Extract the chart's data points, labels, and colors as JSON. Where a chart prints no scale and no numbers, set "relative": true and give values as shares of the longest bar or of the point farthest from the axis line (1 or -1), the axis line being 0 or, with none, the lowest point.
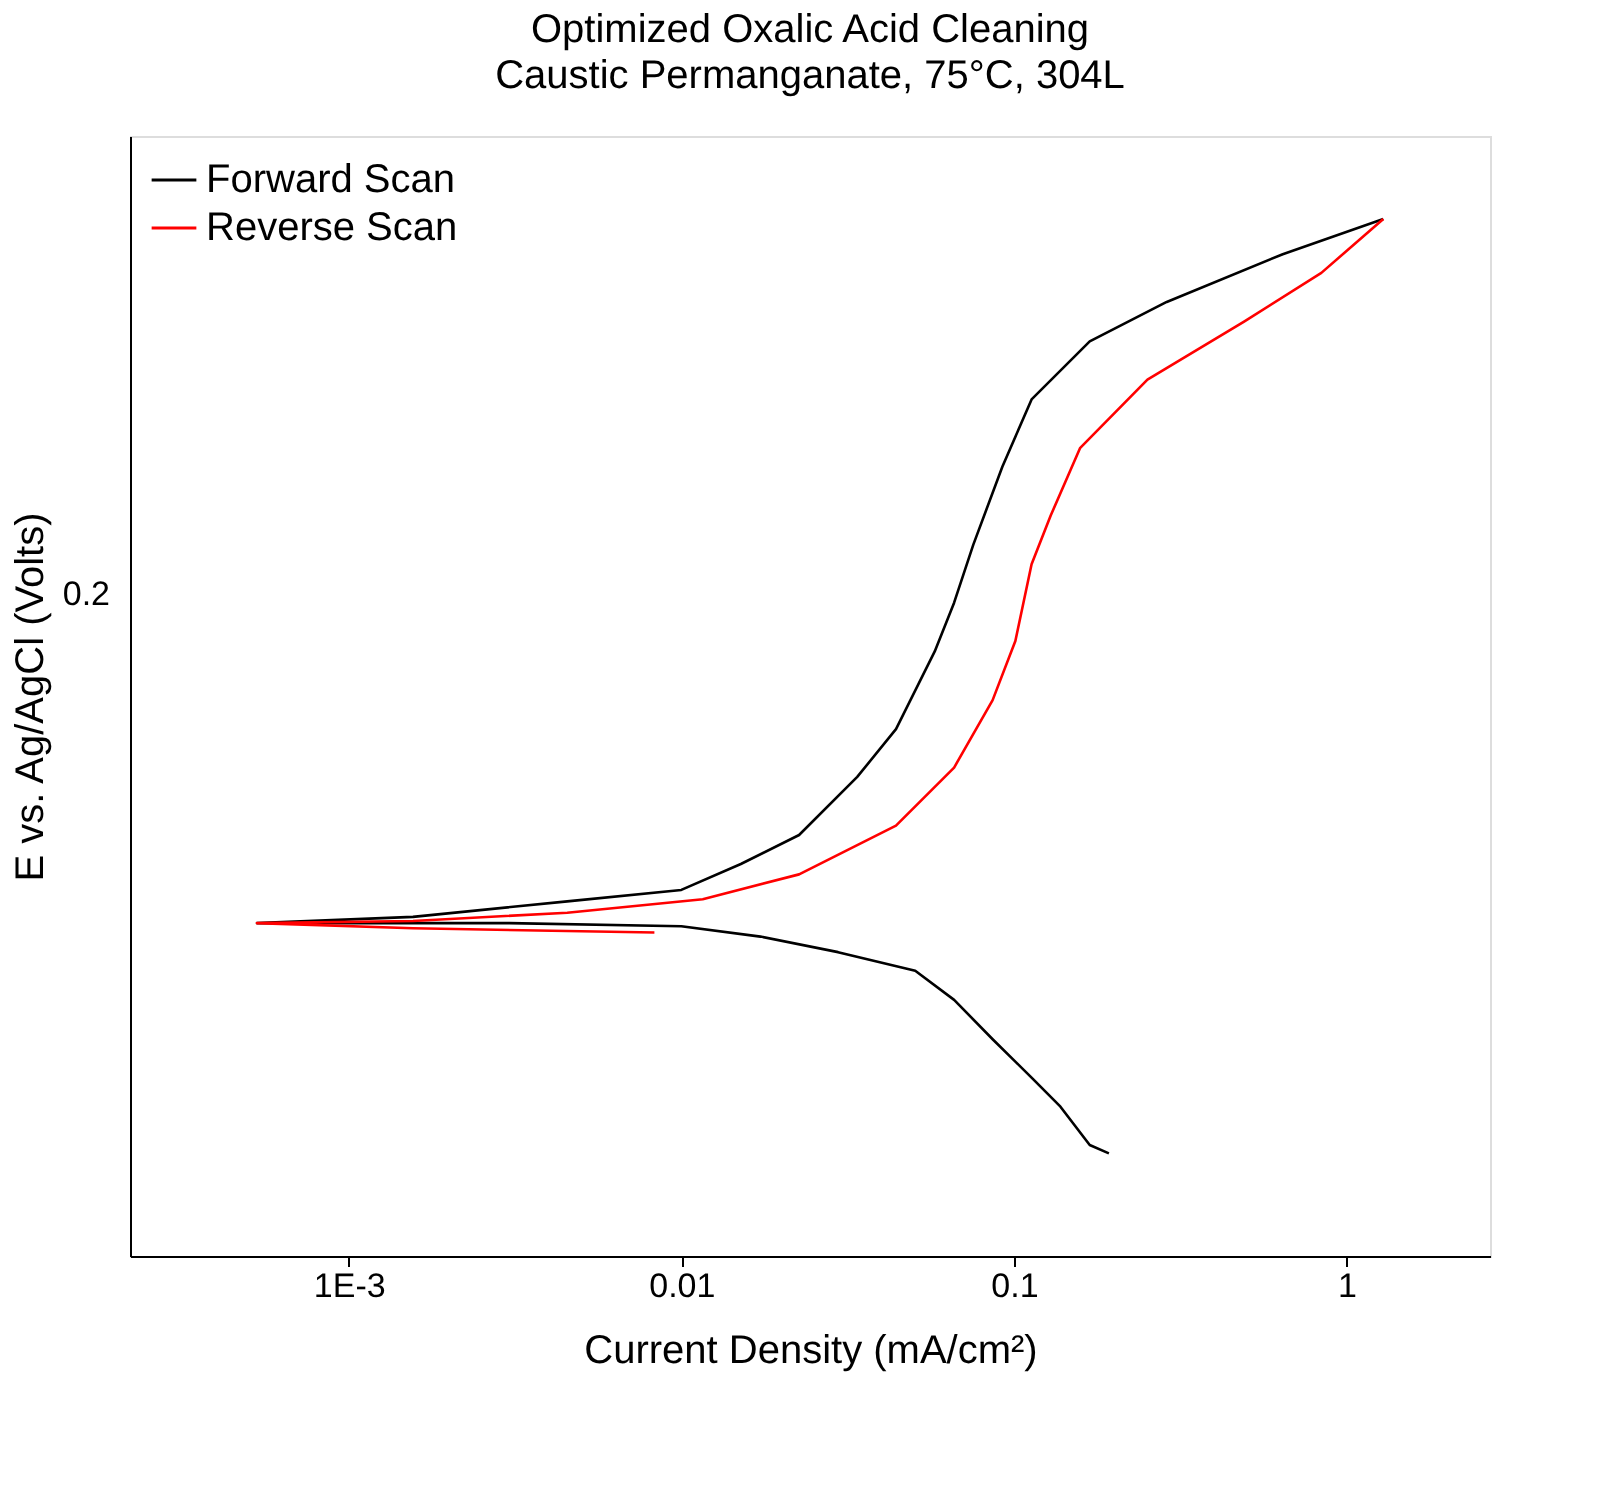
{
  "chart_data": {
    "type": "line",
    "title": "Optimized Oxalic Acid Cleaning",
    "subtitle": "Caustic Permanganate, 75°C, 304L",
    "xlabel": "Current Density (mA/cm²)",
    "ylabel": "E vs. Ag/AgCl (Volts)",
    "log": "x",
    "relative": true,
    "grid": false,
    "legend": "top left",
    "marker": "none",
    "line_style": "solid",
    "xlim": [
      0.00022,
      2.7
    ],
    "xticks": [
      {
        "value": 0.001,
        "label": "1E-3"
      },
      0.01,
      0.1,
      1
    ],
    "annotations": [
      "0.2"
    ],
    "series": [
      {
        "name": "Forward Scan",
        "color": "#000000",
        "x": [
          0.193,
          0.169,
          0.138,
          0.113,
          0.0863,
          0.0661,
          0.0505,
          0.0296,
          0.0173,
          0.01,
          0.00304,
          0.001,
          0.00053,
          0.00156,
          0.00454,
          0.01,
          0.0151,
          0.0226,
          0.0338,
          0.0442,
          0.0578,
          0.0661,
          0.0755,
          0.0923,
          0.113,
          0.169,
          0.288,
          0.643,
          1.29
        ],
        "values": [
          0.099,
          0.107,
          0.144,
          0.172,
          0.209,
          0.247,
          0.275,
          0.293,
          0.308,
          0.318,
          0.321,
          0.321,
          0.321,
          0.327,
          0.342,
          0.353,
          0.378,
          0.406,
          0.462,
          0.508,
          0.583,
          0.63,
          0.686,
          0.761,
          0.826,
          0.882,
          0.92,
          0.966,
          1.0
        ]
      },
      {
        "name": "Reverse Scan",
        "color": "#ff0000",
        "x": [
          1.29,
          0.84,
          0.492,
          0.252,
          0.158,
          0.129,
          0.113,
          0.101,
          0.0863,
          0.0661,
          0.0442,
          0.0226,
          0.0116,
          0.00454,
          0.00156,
          0.00053,
          0.00156,
          0.0083
        ],
        "values": [
          1.0,
          0.948,
          0.901,
          0.845,
          0.779,
          0.714,
          0.667,
          0.593,
          0.536,
          0.471,
          0.415,
          0.368,
          0.344,
          0.331,
          0.323,
          0.321,
          0.316,
          0.312
        ]
      }
    ]
  }
}
